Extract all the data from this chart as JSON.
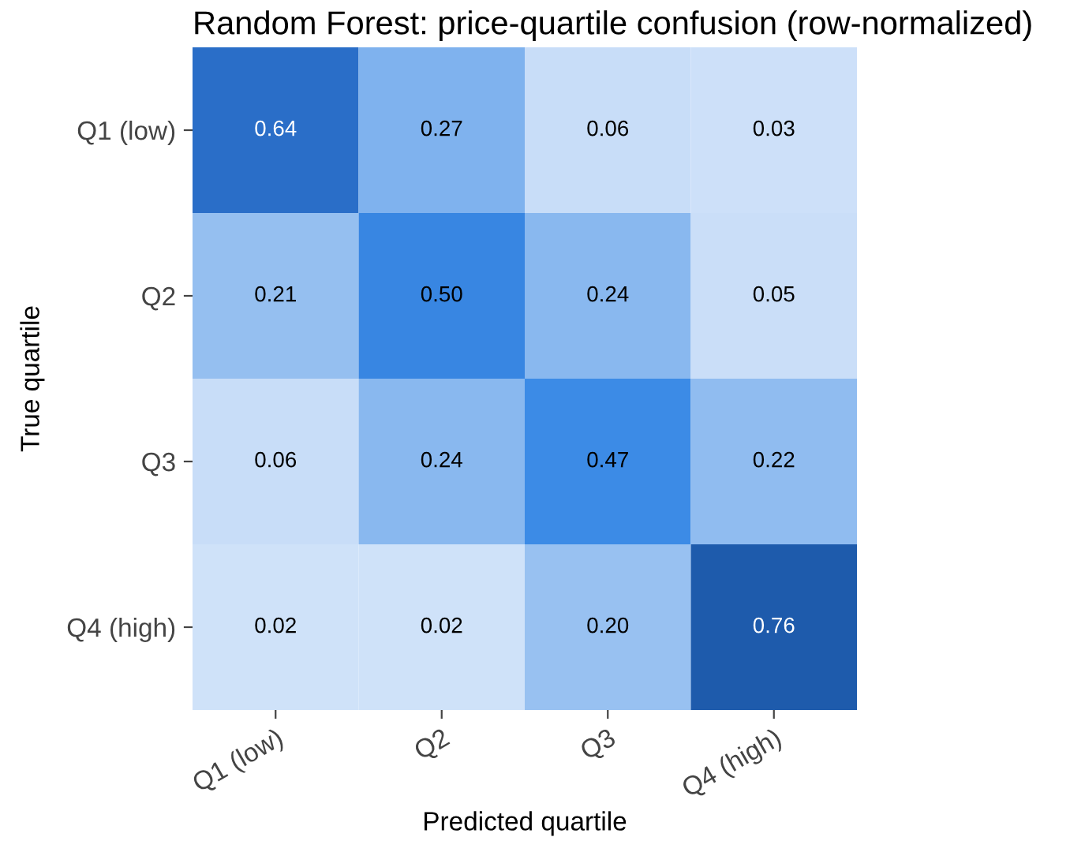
{
  "chart_data": {
    "type": "heatmap",
    "title": "Random Forest: price-quartile confusion (row-normalized)",
    "xlabel": "Predicted quartile",
    "ylabel": "True quartile",
    "categories": [
      "Q1 (low)",
      "Q2",
      "Q3",
      "Q4 (high)"
    ],
    "y_categories": [
      "Q1 (low)",
      "Q2",
      "Q3",
      "Q4 (high)"
    ],
    "cells": [
      [
        0.64,
        0.27,
        0.06,
        0.03
      ],
      [
        0.21,
        0.5,
        0.24,
        0.05
      ],
      [
        0.06,
        0.24,
        0.47,
        0.22
      ],
      [
        0.02,
        0.02,
        0.2,
        0.76
      ]
    ],
    "cell_labels": [
      [
        "0.64",
        "0.27",
        "0.06",
        "0.03"
      ],
      [
        "0.21",
        "0.50",
        "0.24",
        "0.05"
      ],
      [
        "0.06",
        "0.24",
        "0.47",
        "0.22"
      ],
      [
        "0.02",
        "0.02",
        "0.20",
        "0.76"
      ]
    ],
    "grid": false
  }
}
